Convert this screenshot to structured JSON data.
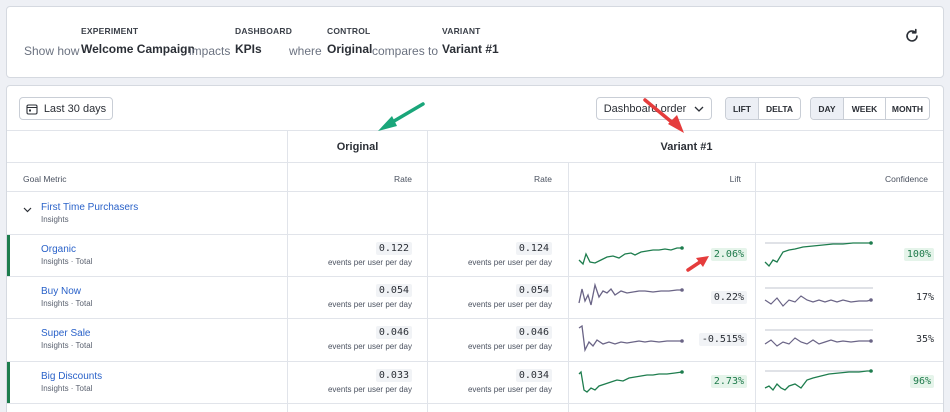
{
  "header": {
    "prefix": "Show how",
    "experiment_label": "EXPERIMENT",
    "experiment_value": "Welcome Campaign",
    "connector1": "impacts",
    "dashboard_label": "DASHBOARD",
    "dashboard_value": "KPIs",
    "connector2": "where",
    "control_label": "CONTROL",
    "control_value": "Original",
    "connector3": "compares to",
    "variant_label": "VARIANT",
    "variant_value": "Variant #1",
    "refresh_icon": "refresh-icon"
  },
  "toolbar": {
    "date_range": "Last 30 days",
    "sort": "Dashboard order",
    "mode_options": [
      "LIFT",
      "DELTA"
    ],
    "mode_selected": "LIFT",
    "granularity_options": [
      "DAY",
      "WEEK",
      "MONTH"
    ],
    "granularity_selected": "DAY"
  },
  "table": {
    "group_original": "Original",
    "group_variant": "Variant #1",
    "col_goal_metric": "Goal Metric",
    "col_rate_original": "Rate",
    "col_rate_variant": "Rate",
    "col_lift": "Lift",
    "col_confidence": "Confidence",
    "group_row": {
      "name": "First Time Purchasers",
      "sub": "Insights"
    },
    "rows": [
      {
        "name": "Organic",
        "sub": "Insights · Total",
        "orig_rate": "0.122",
        "orig_unit": "events per user per day",
        "var_rate": "0.124",
        "var_unit": "events per user per day",
        "lift": "2.06%",
        "confidence": "100%",
        "significant": true
      },
      {
        "name": "Buy Now",
        "sub": "Insights · Total",
        "orig_rate": "0.054",
        "orig_unit": "events per user per day",
        "var_rate": "0.054",
        "var_unit": "events per user per day",
        "lift": "0.22%",
        "confidence": "17%",
        "significant": false
      },
      {
        "name": "Super Sale",
        "sub": "Insights · Total",
        "orig_rate": "0.046",
        "orig_unit": "events per user per day",
        "var_rate": "0.046",
        "var_unit": "events per user per day",
        "lift": "-0.515%",
        "confidence": "35%",
        "significant": false
      },
      {
        "name": "Big Discounts",
        "sub": "Insights · Total",
        "orig_rate": "0.033",
        "orig_unit": "events per user per day",
        "var_rate": "0.034",
        "var_unit": "events per user per day",
        "lift": "2.73%",
        "confidence": "96%",
        "significant": true
      }
    ]
  },
  "colors": {
    "positive": "#1e7d4e",
    "neutral_line": "#6a6486",
    "link": "#2a62c9",
    "annotation_green": "#1aa67a",
    "annotation_red": "#e53c3c"
  }
}
